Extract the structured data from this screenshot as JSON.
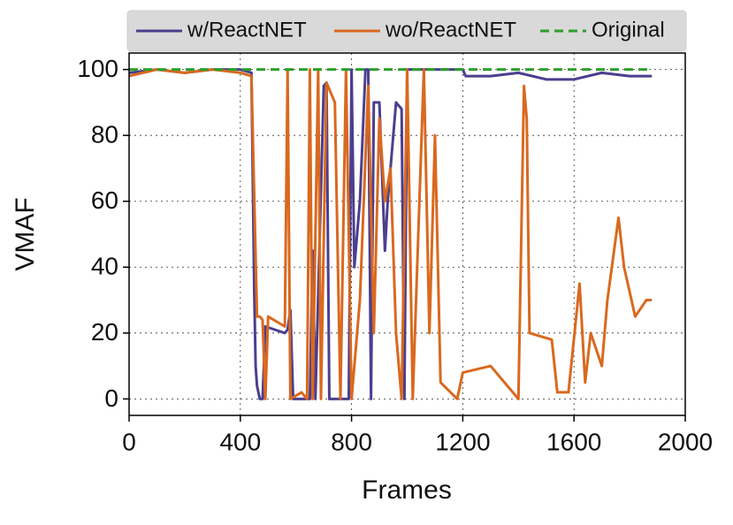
{
  "chart_data": {
    "type": "line",
    "xlabel": "Frames",
    "ylabel": "VMAF",
    "xlim": [
      0,
      2000
    ],
    "ylim": [
      -5,
      105
    ],
    "xticks": [
      0,
      400,
      800,
      1200,
      1600,
      2000
    ],
    "yticks": [
      0,
      20,
      40,
      60,
      80,
      100
    ],
    "grid": true,
    "legend": "top",
    "series": [
      {
        "name": "w/ReactNET",
        "color": "#4b3f8f",
        "dashed": false,
        "x": [
          0,
          100,
          200,
          300,
          400,
          440,
          450,
          455,
          460,
          470,
          480,
          490,
          560,
          570,
          580,
          590,
          600,
          650,
          660,
          670,
          700,
          710,
          720,
          790,
          800,
          810,
          830,
          850,
          860,
          870,
          880,
          900,
          920,
          930,
          960,
          980,
          990,
          1000,
          1100,
          1200,
          1210,
          1300,
          1400,
          1500,
          1600,
          1700,
          1800,
          1880
        ],
        "values": [
          99,
          100,
          99,
          100,
          100,
          99,
          33,
          10,
          4,
          0,
          0,
          22,
          20,
          21,
          27,
          0,
          0,
          0,
          45,
          0,
          95,
          96,
          0,
          0,
          100,
          40,
          60,
          100,
          100,
          0,
          90,
          90,
          45,
          60,
          90,
          88,
          0,
          100,
          100,
          100,
          98,
          98,
          99,
          97,
          97,
          99,
          98,
          98
        ]
      },
      {
        "name": "wo/ReactNET",
        "color": "#d9691f",
        "dashed": false,
        "x": [
          0,
          100,
          200,
          300,
          400,
          440,
          460,
          470,
          480,
          490,
          500,
          560,
          570,
          580,
          620,
          640,
          650,
          660,
          680,
          690,
          710,
          740,
          760,
          780,
          800,
          830,
          860,
          880,
          900,
          920,
          940,
          960,
          980,
          1000,
          1020,
          1060,
          1080,
          1100,
          1120,
          1180,
          1200,
          1300,
          1400,
          1420,
          1430,
          1440,
          1520,
          1540,
          1580,
          1620,
          1640,
          1660,
          1700,
          1720,
          1760,
          1780,
          1820,
          1860,
          1880
        ],
        "values": [
          98,
          100,
          99,
          100,
          99,
          98,
          25,
          25,
          24,
          0,
          25,
          22,
          100,
          0,
          2,
          0,
          100,
          0,
          100,
          0,
          96,
          90,
          0,
          100,
          0,
          30,
          95,
          20,
          85,
          60,
          70,
          20,
          0,
          100,
          0,
          100,
          20,
          80,
          5,
          0,
          8,
          10,
          0,
          95,
          85,
          20,
          18,
          2,
          2,
          35,
          5,
          20,
          10,
          30,
          55,
          40,
          25,
          30,
          30
        ]
      },
      {
        "name": "Original",
        "color": "#2ca02c",
        "dashed": true,
        "x": [
          0,
          1880
        ],
        "values": [
          100,
          100
        ]
      }
    ]
  }
}
